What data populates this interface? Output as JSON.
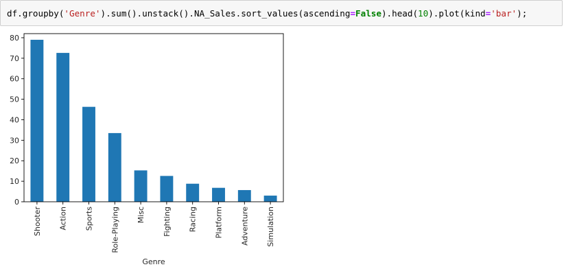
{
  "code_cell": {
    "tokens": [
      {
        "text": "df.groupby(",
        "kind": "plain"
      },
      {
        "text": "'Genre'",
        "kind": "str"
      },
      {
        "text": ").sum().unstack().NA_Sales.sort_values(ascending",
        "kind": "plain"
      },
      {
        "text": "=",
        "kind": "op"
      },
      {
        "text": "False",
        "kind": "kw"
      },
      {
        "text": ").head(",
        "kind": "plain"
      },
      {
        "text": "10",
        "kind": "num"
      },
      {
        "text": ").plot(kind",
        "kind": "plain"
      },
      {
        "text": "=",
        "kind": "op"
      },
      {
        "text": "'bar'",
        "kind": "str"
      },
      {
        "text": ");",
        "kind": "plain"
      }
    ]
  },
  "chart_data": {
    "type": "bar",
    "title": "",
    "xlabel": "Genre",
    "ylabel": "",
    "categories": [
      "Shooter",
      "Action",
      "Sports",
      "Role-Playing",
      "Misc",
      "Fighting",
      "Racing",
      "Platform",
      "Adventure",
      "Simulation"
    ],
    "values": [
      79.0,
      72.6,
      46.3,
      33.5,
      15.3,
      12.6,
      8.8,
      6.8,
      5.7,
      3.0
    ],
    "ylim": [
      0,
      82
    ],
    "yticks": [
      0,
      10,
      20,
      30,
      40,
      50,
      60,
      70,
      80
    ],
    "bar_color": "#1f77b4",
    "grid": false,
    "legend": "none"
  }
}
